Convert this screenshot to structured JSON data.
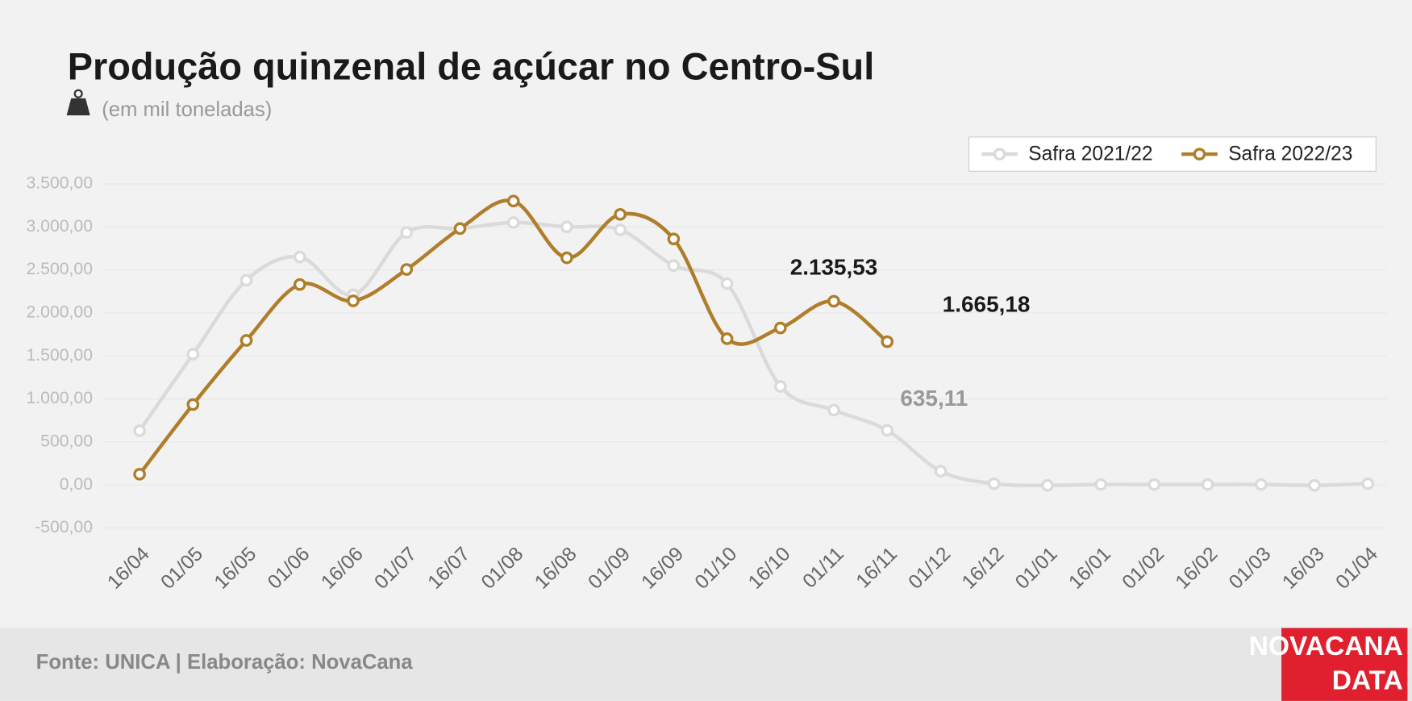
{
  "chart_data": {
    "type": "line",
    "title": "Produção quinzenal de açúcar no Centro-Sul",
    "subtitle": "(em mil toneladas)",
    "source": "Fonte: UNICA | Elaboração: NovaCana",
    "logo": [
      "NOVACANA",
      "DATA"
    ],
    "categories": [
      "16/04",
      "01/05",
      "16/05",
      "01/06",
      "16/06",
      "01/07",
      "16/07",
      "01/08",
      "16/08",
      "01/09",
      "16/09",
      "01/10",
      "16/10",
      "01/11",
      "16/11",
      "01/12",
      "16/12",
      "01/01",
      "16/01",
      "01/02",
      "16/02",
      "01/03",
      "16/03",
      "01/04"
    ],
    "series": [
      {
        "name": "Safra 2021/22",
        "color": "#dadada",
        "label_color": "#999999",
        "values": [
          630,
          1520,
          2380,
          2650,
          2210,
          2935,
          2980,
          3050,
          3000,
          2965,
          2550,
          2340,
          1145,
          870,
          635.11,
          160,
          15,
          -5,
          5,
          5,
          5,
          5,
          -5,
          15
        ],
        "value_labels": [
          null,
          null,
          null,
          null,
          null,
          null,
          null,
          null,
          null,
          null,
          null,
          null,
          null,
          null,
          "635,11",
          null,
          null,
          null,
          null,
          null,
          null,
          null,
          null,
          null
        ]
      },
      {
        "name": "Safra 2022/23",
        "color": "#b07d2a",
        "label_color": "#1a1a1a",
        "values": [
          125,
          935,
          1680,
          2330,
          2140,
          2505,
          2980,
          3300,
          2640,
          3145,
          2860,
          1700,
          1825,
          2135.53,
          1665.18,
          null,
          null,
          null,
          null,
          null,
          null,
          null,
          null,
          null
        ],
        "value_labels": [
          null,
          null,
          null,
          null,
          null,
          null,
          null,
          null,
          null,
          null,
          null,
          null,
          null,
          "2.135,53",
          "1.665,18",
          null,
          null,
          null,
          null,
          null,
          null,
          null,
          null,
          null
        ]
      }
    ],
    "ylim": [
      -500,
      3500
    ],
    "yticks": [
      {
        "value": -500,
        "label": "-500,00"
      },
      {
        "value": 0,
        "label": "0,00"
      },
      {
        "value": 500,
        "label": "500,00"
      },
      {
        "value": 1000,
        "label": "1.000,00"
      },
      {
        "value": 1500,
        "label": "1.500,00"
      },
      {
        "value": 2000,
        "label": "2.000,00"
      },
      {
        "value": 2500,
        "label": "2.500,00"
      },
      {
        "value": 3000,
        "label": "3.000,00"
      },
      {
        "value": 3500,
        "label": "3.500,00"
      }
    ],
    "grid": true,
    "legend": "top-right"
  }
}
